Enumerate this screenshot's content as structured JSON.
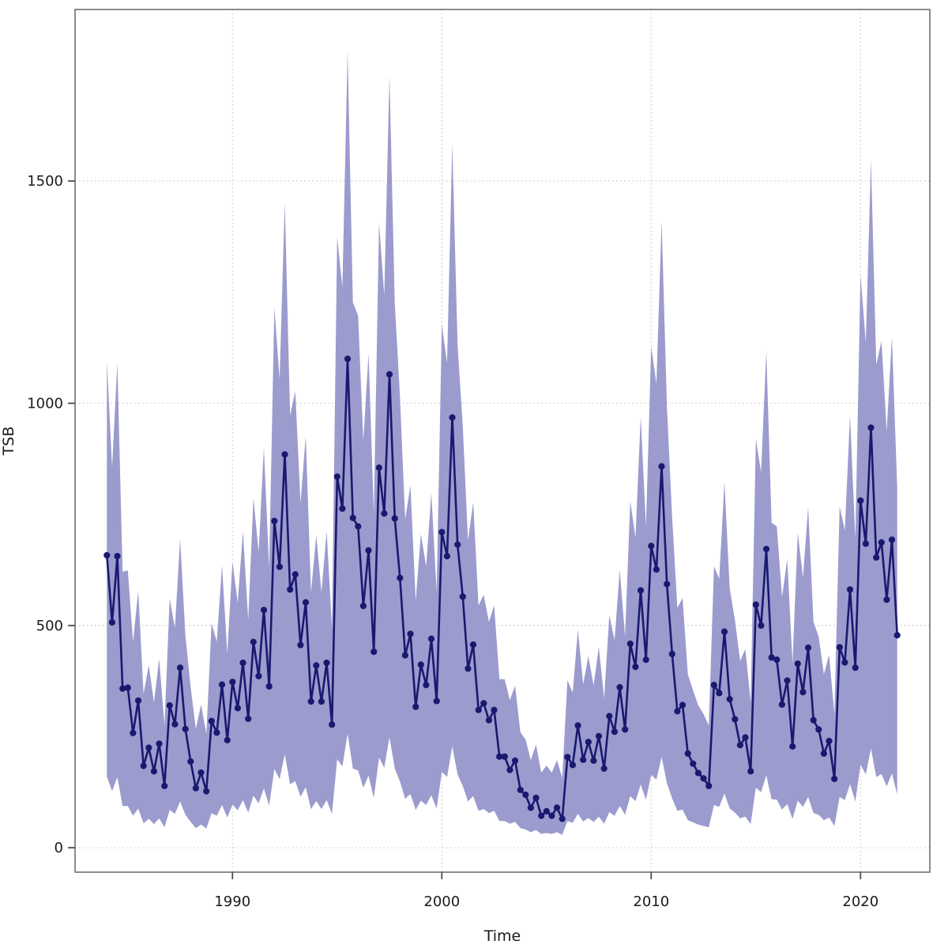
{
  "chart_data": {
    "type": "line",
    "title": "",
    "xlabel": "Time",
    "ylabel": "TSB",
    "series_name": "TSB",
    "frequency": "quarterly",
    "start_year": 1984.0,
    "period_years": 0.25,
    "end_year": 2021.75,
    "x_ticks": [
      1990,
      2000,
      2010,
      2020
    ],
    "y_ticks": [
      0,
      500,
      1000,
      1500
    ],
    "xlim": [
      1982.48,
      2023.31
    ],
    "ylim": [
      -55,
      1886
    ],
    "grid": "dotted",
    "legend": "none",
    "marker": "circle",
    "values": [
      658,
      507,
      656,
      358,
      360,
      258,
      331,
      184,
      225,
      172,
      234,
      139,
      320,
      278,
      405,
      267,
      194,
      134,
      169,
      127,
      285,
      259,
      367,
      242,
      373,
      314,
      416,
      290,
      463,
      386,
      535,
      363,
      735,
      632,
      885,
      581,
      615,
      456,
      552,
      329,
      410,
      329,
      416,
      277,
      835,
      763,
      1100,
      742,
      723,
      544,
      669,
      441,
      855,
      752,
      1065,
      741,
      607,
      433,
      481,
      317,
      412,
      366,
      470,
      330,
      710,
      656,
      968,
      682,
      565,
      403,
      457,
      310,
      325,
      287,
      310,
      205,
      205,
      175,
      196,
      130,
      119,
      90,
      112,
      72,
      82,
      72,
      90,
      65,
      204,
      186,
      275,
      198,
      238,
      196,
      251,
      178,
      296,
      261,
      361,
      266,
      459,
      407,
      579,
      423,
      679,
      626,
      858,
      593,
      436,
      307,
      321,
      212,
      189,
      168,
      156,
      139,
      366,
      348,
      486,
      334,
      289,
      231,
      248,
      172,
      547,
      500,
      672,
      428,
      423,
      322,
      376,
      228,
      414,
      350,
      450,
      287,
      266,
      212,
      240,
      155,
      451,
      417,
      581,
      405,
      781,
      684,
      945,
      653,
      687,
      558,
      693,
      478
    ],
    "band_upper": [
      1095,
      856,
      1091,
      621,
      624,
      463,
      578,
      346,
      411,
      327,
      425,
      275,
      561,
      494,
      695,
      477,
      362,
      267,
      322,
      256,
      505,
      464,
      635,
      437,
      644,
      551,
      712,
      513,
      787,
      665,
      900,
      629,
      1216,
      1054,
      1453,
      973,
      1027,
      775,
      927,
      575,
      703,
      575,
      712,
      493,
      1374,
      1261,
      1793,
      1227,
      1197,
      915,
      1112,
      752,
      1406,
      1243,
      1738,
      1226,
      1014,
      739,
      815,
      556,
      706,
      633,
      798,
      576,
      1177,
      1091,
      1584,
      1133,
      948,
      692,
      777,
      545,
      569,
      508,
      545,
      379,
      379,
      332,
      365,
      260,
      243,
      197,
      232,
      169,
      185,
      169,
      197,
      158,
      377,
      349,
      490,
      368,
      431,
      365,
      452,
      336,
      523,
      467,
      625,
      475,
      780,
      698,
      970,
      723,
      1128,
      1044,
      1411,
      992,
      744,
      540,
      562,
      390,
      354,
      320,
      301,
      275,
      633,
      605,
      823,
      583,
      512,
      420,
      447,
      327,
      919,
      845,
      1117,
      731,
      723,
      564,
      649,
      415,
      709,
      608,
      766,
      508,
      475,
      390,
      434,
      300,
      768,
      714,
      973,
      695,
      1289,
      1136,
      1548,
      1087,
      1140,
      937,
      1150,
      810
    ],
    "band_lower": [
      160,
      127,
      159,
      94,
      94,
      72,
      88,
      55,
      65,
      53,
      66,
      46,
      85,
      76,
      104,
      74,
      58,
      44,
      52,
      43,
      78,
      72,
      96,
      68,
      97,
      84,
      107,
      79,
      117,
      100,
      133,
      95,
      177,
      154,
      210,
      143,
      150,
      115,
      136,
      87,
      105,
      87,
      107,
      76,
      199,
      183,
      257,
      178,
      174,
      135,
      162,
      112,
      203,
      180,
      249,
      178,
      149,
      110,
      121,
      85,
      106,
      96,
      118,
      88,
      171,
      159,
      228,
      165,
      139,
      104,
      116,
      83,
      87,
      78,
      83,
      60,
      60,
      54,
      58,
      44,
      41,
      35,
      40,
      31,
      33,
      31,
      35,
      29,
      60,
      56,
      76,
      59,
      67,
      58,
      70,
      54,
      80,
      72,
      94,
      74,
      116,
      105,
      142,
      108,
      164,
      153,
      204,
      145,
      111,
      83,
      86,
      62,
      57,
      52,
      49,
      46,
      96,
      92,
      122,
      88,
      79,
      66,
      70,
      53,
      135,
      125,
      163,
      109,
      108,
      86,
      98,
      65,
      106,
      92,
      114,
      78,
      74,
      62,
      68,
      49,
      114,
      107,
      143,
      104,
      187,
      165,
      223,
      159,
      166,
      138,
      167,
      120
    ],
    "colors": {
      "line": "#191970",
      "band": "#9b9bce",
      "grid": "#c9c9c9",
      "border": "#7f7f7f",
      "tick": "#4d4d4d",
      "text": "#1a1a1a",
      "background": "#ffffff"
    }
  }
}
